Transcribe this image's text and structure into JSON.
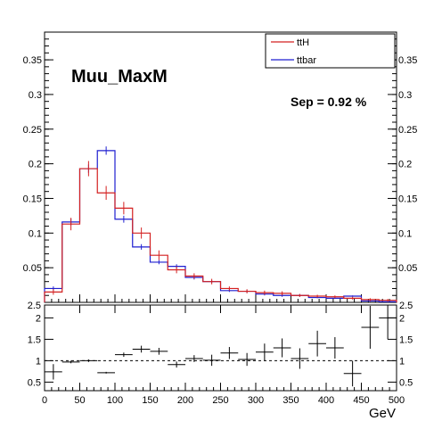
{
  "chart_data": [
    {
      "type": "histogram",
      "title": "Muu_MaxM",
      "annotation": "Sep = 0.92 %",
      "xlabel": "GeV",
      "xlim": [
        0,
        500
      ],
      "ylim": [
        0,
        0.39
      ],
      "bin_edges": [
        0,
        25,
        50,
        75,
        100,
        125,
        150,
        175,
        200,
        225,
        250,
        275,
        300,
        325,
        350,
        375,
        400,
        425,
        450,
        475,
        500
      ],
      "x_ticks": [
        0,
        50,
        100,
        150,
        200,
        250,
        300,
        350,
        400,
        450,
        500
      ],
      "y_ticks": [
        0.05,
        0.1,
        0.15,
        0.2,
        0.25,
        0.3,
        0.35
      ],
      "y_tick_labels": [
        "0.05",
        "0.1",
        "0.15",
        "0.2",
        "0.25",
        "0.3",
        "0.35"
      ],
      "legend_position": "top-right",
      "colors": {
        "ttH": "#d42121",
        "ttbar": "#1f1fd0"
      },
      "series": [
        {
          "name": "ttH",
          "values": [
            0.015,
            0.113,
            0.193,
            0.158,
            0.136,
            0.1,
            0.068,
            0.047,
            0.038,
            0.03,
            0.02,
            0.016,
            0.014,
            0.013,
            0.01,
            0.009,
            0.008,
            0.006,
            0.004,
            0.003
          ],
          "errors": [
            0.004,
            0.009,
            0.011,
            0.01,
            0.009,
            0.008,
            0.007,
            0.005,
            0.004,
            0.004,
            0.003,
            0.003,
            0.003,
            0.003,
            0.002,
            0.002,
            0.002,
            0.002,
            0.002,
            0.002
          ]
        },
        {
          "name": "ttbar",
          "values": [
            0.02,
            0.116,
            0.193,
            0.219,
            0.12,
            0.08,
            0.058,
            0.052,
            0.036,
            0.03,
            0.017,
            0.016,
            0.012,
            0.01,
            0.01,
            0.007,
            0.006,
            0.009,
            0.002,
            0.001
          ],
          "errors": [
            0.003,
            0.005,
            0.006,
            0.006,
            0.005,
            0.004,
            0.003,
            0.003,
            0.003,
            0.002,
            0.002,
            0.002,
            0.002,
            0.002,
            0.002,
            0.001,
            0.001,
            0.001,
            0.001,
            0.001
          ]
        }
      ]
    },
    {
      "type": "scatter",
      "title": "",
      "xlabel": "GeV",
      "xlim": [
        0,
        500
      ],
      "ylim": [
        0.3,
        2.3
      ],
      "x_ticks": [
        0,
        50,
        100,
        150,
        200,
        250,
        300,
        350,
        400,
        450,
        500
      ],
      "x_tick_labels": [
        "0",
        "50",
        "100",
        "150",
        "200",
        "250",
        "300",
        "350",
        "400",
        "450",
        "500"
      ],
      "y_ticks": [
        0.5,
        1,
        1.5,
        2
      ],
      "y_tick_labels": [
        "0.5",
        "1",
        "1.5",
        "2"
      ],
      "top_label": "2.5",
      "reference_line": 1,
      "x": [
        12.5,
        37.5,
        62.5,
        87.5,
        112.5,
        137.5,
        162.5,
        187.5,
        212.5,
        237.5,
        262.5,
        287.5,
        312.5,
        337.5,
        362.5,
        387.5,
        412.5,
        437.5,
        462.5,
        487.5
      ],
      "values": [
        0.74,
        0.97,
        1.0,
        0.72,
        1.14,
        1.27,
        1.22,
        0.91,
        1.05,
        1.01,
        1.18,
        1.03,
        1.2,
        1.3,
        1.05,
        1.4,
        1.3,
        0.7,
        1.78,
        2.0
      ],
      "errors": [
        0.18,
        0.03,
        0.03,
        0.02,
        0.05,
        0.08,
        0.08,
        0.07,
        0.08,
        0.13,
        0.14,
        0.15,
        0.2,
        0.22,
        0.24,
        0.3,
        0.25,
        0.3,
        0.5,
        0.5
      ]
    }
  ]
}
